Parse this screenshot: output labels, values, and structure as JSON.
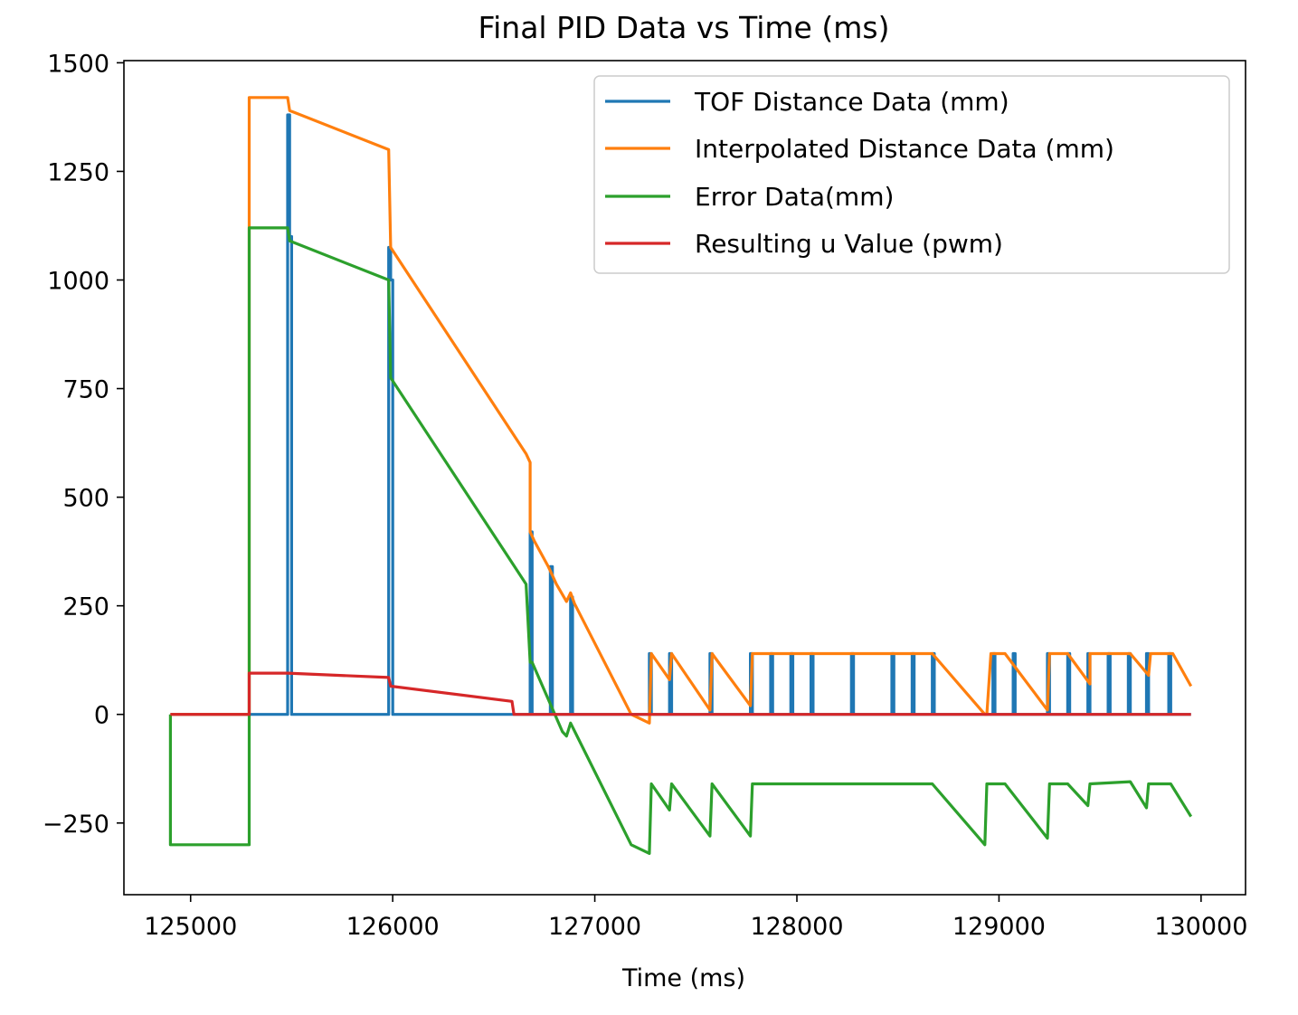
{
  "chart_data": {
    "type": "line",
    "title": "Final PID Data vs Time (ms)",
    "xlabel": "Time (ms)",
    "ylabel": "",
    "xlim": [
      124670,
      130220
    ],
    "ylim": [
      -415,
      1505
    ],
    "xticks": [
      125000,
      126000,
      127000,
      128000,
      129000,
      130000
    ],
    "yticks": [
      -250,
      0,
      250,
      500,
      750,
      1000,
      1250,
      1500
    ],
    "xtick_labels": [
      "125000",
      "126000",
      "127000",
      "128000",
      "129000",
      "130000"
    ],
    "ytick_labels": [
      "−250",
      "0",
      "250",
      "500",
      "750",
      "1000",
      "1250",
      "1500"
    ],
    "grid": false,
    "legend_position": "top-right",
    "series": [
      {
        "name": "TOF Distance Data (mm)",
        "color": "#1f77b4",
        "x": [
          124900,
          125290,
          125480,
          125480,
          125490,
          125490,
          125500,
          125500,
          125510,
          125510,
          125980,
          125980,
          125990,
          125990,
          126000,
          126000,
          126010,
          126010,
          126680,
          126680,
          126690,
          126690,
          126780,
          126780,
          126790,
          126790,
          126880,
          126880,
          126890,
          126890,
          127270,
          127270,
          127280,
          127280,
          127370,
          127370,
          127380,
          127380,
          127570,
          127570,
          127580,
          127580,
          127770,
          127770,
          127780,
          127780,
          127870,
          127870,
          127880,
          127880,
          127970,
          127970,
          127980,
          127980,
          128070,
          128070,
          128080,
          128080,
          128270,
          128270,
          128280,
          128280,
          128470,
          128470,
          128480,
          128480,
          128570,
          128570,
          128580,
          128580,
          128670,
          128670,
          128680,
          128680,
          128970,
          128970,
          128980,
          128980,
          129070,
          129070,
          129080,
          129080,
          129240,
          129240,
          129250,
          129250,
          129340,
          129340,
          129350,
          129350,
          129440,
          129440,
          129450,
          129450,
          129540,
          129540,
          129550,
          129550,
          129640,
          129640,
          129650,
          129650,
          129730,
          129730,
          129740,
          129740,
          129840,
          129840,
          129850,
          129850,
          129950
        ],
        "y": [
          0,
          0,
          0,
          1380,
          1380,
          1100,
          1100,
          0,
          0,
          0,
          0,
          1075,
          1075,
          1000,
          1000,
          0,
          0,
          0,
          0,
          420,
          420,
          0,
          0,
          340,
          340,
          0,
          0,
          270,
          270,
          0,
          0,
          140,
          140,
          0,
          0,
          140,
          140,
          0,
          0,
          140,
          140,
          0,
          0,
          140,
          140,
          0,
          0,
          140,
          140,
          0,
          0,
          140,
          140,
          0,
          0,
          140,
          140,
          0,
          0,
          140,
          140,
          0,
          0,
          140,
          140,
          0,
          0,
          140,
          140,
          0,
          0,
          140,
          140,
          0,
          0,
          140,
          140,
          0,
          0,
          140,
          140,
          0,
          0,
          140,
          140,
          0,
          0,
          140,
          140,
          0,
          0,
          140,
          140,
          0,
          0,
          140,
          140,
          0,
          0,
          140,
          140,
          0,
          0,
          140,
          140,
          0,
          0,
          140,
          140,
          0,
          0
        ]
      },
      {
        "name": "Interpolated Distance Data (mm)",
        "color": "#ff7f0e",
        "x": [
          124900,
          125290,
          125290,
          125480,
          125490,
          125980,
          125990,
          126660,
          126680,
          126680,
          126700,
          126770,
          126790,
          126810,
          126860,
          126880,
          126900,
          127180,
          127270,
          127280,
          127370,
          127380,
          127570,
          127580,
          127770,
          127780,
          128670,
          128930,
          128940,
          128960,
          129030,
          129240,
          129250,
          129340,
          129450,
          129450,
          129650,
          129740,
          129750,
          129860,
          129950
        ],
        "y": [
          0,
          0,
          1420,
          1420,
          1390,
          1300,
          1075,
          600,
          580,
          420,
          400,
          340,
          320,
          300,
          260,
          280,
          255,
          0,
          -20,
          140,
          80,
          140,
          10,
          140,
          20,
          140,
          140,
          0,
          0,
          140,
          140,
          10,
          140,
          140,
          70,
          140,
          140,
          90,
          140,
          140,
          65
        ]
      },
      {
        "name": "Error Data(mm)",
        "color": "#2ca02c",
        "x": [
          124900,
          124900,
          125290,
          125290,
          125480,
          125490,
          125980,
          125990,
          126660,
          126680,
          126690,
          126840,
          126860,
          126880,
          127180,
          127270,
          127280,
          127370,
          127380,
          127570,
          127580,
          127770,
          127780,
          128670,
          128930,
          128940,
          129030,
          129240,
          129250,
          129340,
          129440,
          129450,
          129650,
          129730,
          129740,
          129850,
          129950
        ],
        "y": [
          0,
          -300,
          -300,
          1120,
          1120,
          1090,
          1000,
          775,
          300,
          120,
          120,
          -40,
          -50,
          -20,
          -300,
          -320,
          -160,
          -220,
          -160,
          -280,
          -160,
          -280,
          -160,
          -160,
          -300,
          -160,
          -160,
          -285,
          -160,
          -160,
          -210,
          -160,
          -155,
          -215,
          -160,
          -160,
          -235
        ]
      },
      {
        "name": "Resulting u Value (pwm)",
        "color": "#d62728",
        "x": [
          124900,
          125290,
          125290,
          125480,
          125980,
          125990,
          126590,
          126600,
          129950
        ],
        "y": [
          0,
          0,
          95,
          95,
          85,
          65,
          30,
          0,
          0
        ]
      }
    ]
  }
}
